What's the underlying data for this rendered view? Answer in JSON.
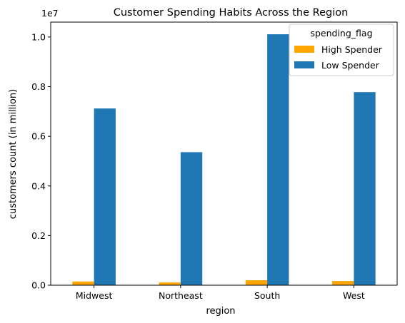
{
  "chart_data": {
    "type": "bar",
    "title": "Customer Spending Habits Across the Region",
    "xlabel": "region",
    "ylabel": "customers count (in million)",
    "offset_text": "1e7",
    "categories": [
      "Midwest",
      "Northeast",
      "South",
      "West"
    ],
    "series": [
      {
        "name": "High Spender",
        "color": "#ffa500",
        "values": [
          150000,
          110000,
          200000,
          170000
        ]
      },
      {
        "name": "Low Spender",
        "color": "#1f77b4",
        "values": [
          7120000,
          5360000,
          10110000,
          7780000
        ]
      }
    ],
    "ylim": [
      0,
      10600000
    ],
    "yticks": [
      0,
      2000000,
      4000000,
      6000000,
      8000000,
      10000000
    ],
    "ytick_labels": [
      "0.0",
      "0.2",
      "0.4",
      "0.6",
      "0.8",
      "1.0"
    ],
    "legend": {
      "title": "spending_flag",
      "placement": "top-right"
    },
    "grid": false
  }
}
